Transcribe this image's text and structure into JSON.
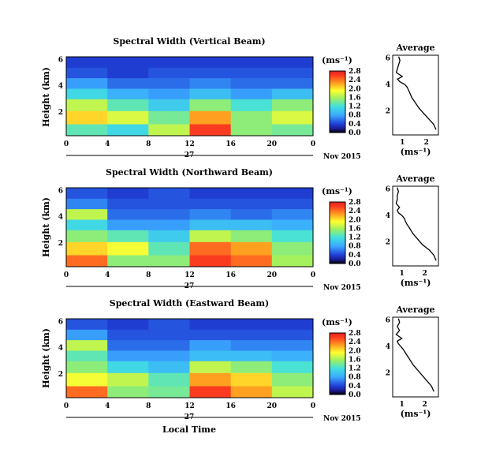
{
  "chart_data": [
    {
      "type": "heatmap",
      "title": "Spectral Width (Vertical Beam)",
      "ylabel": "Height (km)",
      "yticks": [
        "2",
        "4",
        "6"
      ],
      "ylim": [
        0.2,
        6.2
      ],
      "xticks": [
        "0",
        "4",
        "8",
        "12",
        "16",
        "20",
        "0"
      ],
      "xlim": [
        0,
        24
      ],
      "date_day": "27",
      "date_month": "Nov 2015",
      "colorbar": {
        "unit": "(ms⁻¹)",
        "labels": [
          "0.0",
          "0.4",
          "0.8",
          "1.2",
          "1.6",
          "2.0",
          "2.4",
          "2.8"
        ]
      },
      "cells": [
        {
          "hour": 1,
          "heights": [
            0.6,
            1.6,
            2.6,
            3.4,
            4.2,
            5.0,
            5.8
          ],
          "values": [
            1.4,
            2.2,
            1.8,
            1.2,
            0.8,
            0.5,
            0.4
          ]
        },
        {
          "hour": 5,
          "heights": [
            0.6,
            1.6,
            2.6,
            3.4,
            4.2,
            5.0,
            5.8
          ],
          "values": [
            1.2,
            1.9,
            1.4,
            0.9,
            0.6,
            0.4,
            0.4
          ]
        },
        {
          "hour": 9,
          "heights": [
            0.6,
            1.6,
            2.6,
            3.4,
            4.2,
            5.0,
            5.8
          ],
          "values": [
            1.8,
            1.5,
            1.1,
            0.8,
            0.6,
            0.5,
            0.4
          ]
        },
        {
          "hour": 13,
          "heights": [
            0.6,
            1.6,
            2.6,
            3.4,
            4.2,
            5.0,
            5.8
          ],
          "values": [
            2.8,
            2.4,
            1.6,
            1.0,
            0.7,
            0.5,
            0.4
          ]
        },
        {
          "hour": 17,
          "heights": [
            0.6,
            1.6,
            2.6,
            3.4,
            4.2,
            5.0,
            5.8
          ],
          "values": [
            1.6,
            1.6,
            1.3,
            0.8,
            0.6,
            0.5,
            0.4
          ]
        },
        {
          "hour": 21,
          "heights": [
            0.6,
            1.6,
            2.6,
            3.4,
            4.2,
            5.0,
            5.8
          ],
          "values": [
            1.5,
            1.9,
            1.6,
            1.0,
            0.6,
            0.5,
            0.4
          ]
        }
      ]
    },
    {
      "type": "heatmap",
      "title": "Spectral Width (Northward Beam)",
      "ylabel": "Height (km)",
      "yticks": [
        "2",
        "4",
        "6"
      ],
      "ylim": [
        0.2,
        6.2
      ],
      "xticks": [
        "0",
        "4",
        "8",
        "12",
        "16",
        "20",
        "0"
      ],
      "xlim": [
        0,
        24
      ],
      "date_day": "27",
      "date_month": "Nov 2015",
      "colorbar": {
        "unit": "(ms⁻¹)",
        "labels": [
          "0.0",
          "0.4",
          "0.8",
          "1.2",
          "1.6",
          "2.0",
          "2.4",
          "2.8"
        ]
      },
      "cells": [
        {
          "hour": 1,
          "heights": [
            0.6,
            1.6,
            2.6,
            3.4,
            4.2,
            5.0,
            5.8
          ],
          "values": [
            2.6,
            2.2,
            1.6,
            1.2,
            1.8,
            0.7,
            0.5
          ]
        },
        {
          "hour": 5,
          "heights": [
            0.6,
            1.6,
            2.6,
            3.4,
            4.2,
            5.0,
            5.8
          ],
          "values": [
            1.6,
            2.0,
            1.4,
            0.8,
            0.6,
            0.5,
            0.4
          ]
        },
        {
          "hour": 9,
          "heights": [
            0.6,
            1.6,
            2.6,
            3.4,
            4.2,
            5.0,
            5.8
          ],
          "values": [
            1.6,
            1.4,
            1.1,
            0.8,
            0.6,
            0.5,
            0.5
          ]
        },
        {
          "hour": 13,
          "heights": [
            0.6,
            1.6,
            2.6,
            3.4,
            4.2,
            5.0,
            5.8
          ],
          "values": [
            2.8,
            2.6,
            1.8,
            1.0,
            0.7,
            0.5,
            0.4
          ]
        },
        {
          "hour": 17,
          "heights": [
            0.6,
            1.6,
            2.6,
            3.4,
            4.2,
            5.0,
            5.8
          ],
          "values": [
            2.6,
            2.4,
            1.6,
            1.0,
            0.6,
            0.5,
            0.4
          ]
        },
        {
          "hour": 21,
          "heights": [
            0.6,
            1.6,
            2.6,
            3.4,
            4.2,
            5.0,
            5.8
          ],
          "values": [
            1.7,
            1.6,
            1.3,
            0.9,
            0.7,
            0.5,
            0.4
          ]
        }
      ]
    },
    {
      "type": "heatmap",
      "title": "Spectral Width (Eastward Beam)",
      "ylabel": "Height (km)",
      "yticks": [
        "2",
        "4",
        "6"
      ],
      "ylim": [
        0.2,
        6.2
      ],
      "xticks": [
        "0",
        "4",
        "8",
        "12",
        "16",
        "20",
        "0"
      ],
      "xlim": [
        0,
        24
      ],
      "date_day": "27",
      "date_month": "Nov 2015",
      "xlabel": "Local Time",
      "colorbar": {
        "unit": "(ms⁻¹)",
        "labels": [
          "0.0",
          "0.4",
          "0.8",
          "1.2",
          "1.6",
          "2.0",
          "2.4",
          "2.8"
        ]
      },
      "cells": [
        {
          "hour": 1,
          "heights": [
            0.6,
            1.6,
            2.6,
            3.4,
            4.2,
            5.0,
            5.8
          ],
          "values": [
            2.6,
            2.0,
            1.6,
            1.4,
            1.8,
            0.8,
            0.5
          ]
        },
        {
          "hour": 5,
          "heights": [
            0.6,
            1.6,
            2.6,
            3.4,
            4.2,
            5.0,
            5.8
          ],
          "values": [
            1.6,
            1.8,
            1.2,
            0.8,
            0.6,
            0.5,
            0.4
          ]
        },
        {
          "hour": 9,
          "heights": [
            0.6,
            1.6,
            2.6,
            3.4,
            4.2,
            5.0,
            5.8
          ],
          "values": [
            1.5,
            1.4,
            1.0,
            0.8,
            0.6,
            0.5,
            0.5
          ]
        },
        {
          "hour": 13,
          "heights": [
            0.6,
            1.6,
            2.6,
            3.4,
            4.2,
            5.0,
            5.8
          ],
          "values": [
            2.8,
            2.4,
            1.8,
            1.0,
            0.8,
            0.5,
            0.4
          ]
        },
        {
          "hour": 17,
          "heights": [
            0.6,
            1.6,
            2.6,
            3.4,
            4.2,
            5.0,
            5.8
          ],
          "values": [
            2.4,
            2.2,
            1.6,
            1.0,
            0.7,
            0.5,
            0.4
          ]
        },
        {
          "hour": 21,
          "heights": [
            0.6,
            1.6,
            2.6,
            3.4,
            4.2,
            5.0,
            5.8
          ],
          "values": [
            1.8,
            1.6,
            1.3,
            0.9,
            0.7,
            0.5,
            0.4
          ]
        }
      ]
    },
    {
      "type": "line",
      "title": "Average",
      "xlabel": "(ms⁻¹)",
      "xticks": [
        "1",
        "2"
      ],
      "xlim": [
        0.6,
        2.5
      ],
      "yticks": [
        "2",
        "4",
        "6"
      ],
      "ylim": [
        0.2,
        6.2
      ],
      "x": [
        2.4,
        2.3,
        2.1,
        1.9,
        1.7,
        1.55,
        1.4,
        1.3,
        1.2,
        1.1,
        0.9,
        0.8,
        1.0,
        0.75,
        0.8,
        0.85,
        0.9,
        0.85
      ],
      "y": [
        0.6,
        1.0,
        1.4,
        1.8,
        2.2,
        2.6,
        3.0,
        3.4,
        3.8,
        4.0,
        4.2,
        4.4,
        4.6,
        4.9,
        5.2,
        5.5,
        5.8,
        6.1
      ]
    },
    {
      "type": "line",
      "title": "Average",
      "xlabel": "(ms⁻¹)",
      "xticks": [
        "1",
        "2"
      ],
      "xlim": [
        0.6,
        2.6
      ],
      "yticks": [
        "2",
        "4",
        "6"
      ],
      "ylim": [
        0.2,
        6.2
      ],
      "x": [
        2.5,
        2.4,
        2.2,
        1.9,
        1.7,
        1.5,
        1.35,
        1.2,
        1.1,
        1.0,
        0.85,
        0.8,
        0.9,
        0.75,
        0.8,
        0.8,
        0.85,
        0.8
      ],
      "y": [
        0.6,
        1.0,
        1.4,
        1.8,
        2.2,
        2.6,
        3.0,
        3.4,
        3.8,
        4.0,
        4.2,
        4.4,
        4.6,
        4.9,
        5.2,
        5.5,
        5.8,
        6.1
      ]
    },
    {
      "type": "line",
      "title": "Average",
      "xlabel": "(ms⁻¹)",
      "xticks": [
        "1",
        "2"
      ],
      "xlim": [
        0.6,
        2.6
      ],
      "yticks": [
        "2",
        "4",
        "6"
      ],
      "ylim": [
        0.2,
        6.2
      ],
      "x": [
        2.4,
        2.3,
        2.1,
        1.9,
        1.7,
        1.5,
        1.35,
        1.2,
        1.05,
        0.95,
        0.85,
        0.8,
        1.0,
        0.75,
        0.9,
        0.8,
        0.9,
        0.85
      ],
      "y": [
        0.6,
        1.0,
        1.4,
        1.8,
        2.2,
        2.6,
        3.0,
        3.4,
        3.8,
        4.0,
        4.2,
        4.4,
        4.6,
        4.9,
        5.2,
        5.5,
        5.8,
        6.1
      ]
    }
  ]
}
